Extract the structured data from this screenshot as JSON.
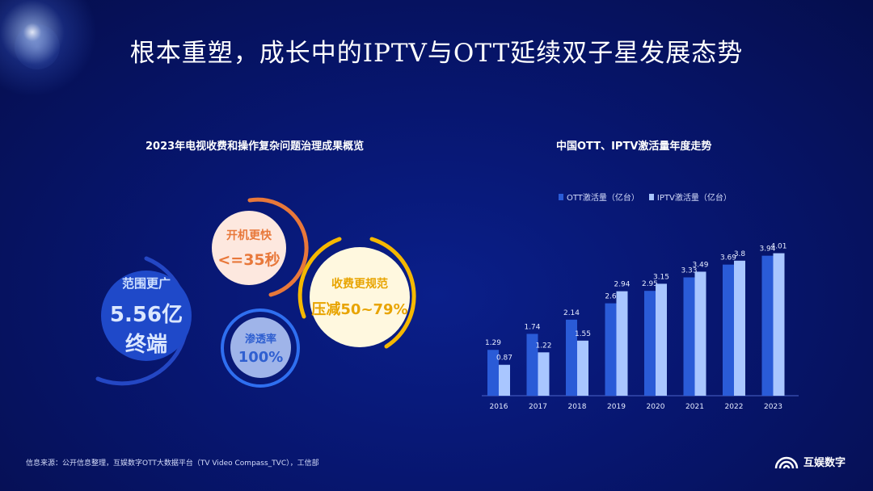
{
  "title": "根本重塑，成长中的IPTV与OTT延续双子星发展态势",
  "left_panel": {
    "subtitle": "2023年电视收费和操作复杂问题治理成果概览",
    "range": {
      "label": "范围更广",
      "value": "5.56亿终端"
    },
    "boot": {
      "label": "开机更快",
      "value": "<=35秒"
    },
    "penetration": {
      "label": "渗透率",
      "value": "100%"
    },
    "fee": {
      "label": "收费更规范",
      "value": "压减50~79%"
    }
  },
  "chart_data": {
    "type": "bar",
    "title": "中国OTT、IPTV激活量年度走势",
    "categories": [
      "2016",
      "2017",
      "2018",
      "2019",
      "2020",
      "2021",
      "2022",
      "2023"
    ],
    "series": [
      {
        "name": "OTT激活量（亿台）",
        "values": [
          1.29,
          1.74,
          2.14,
          2.6,
          2.95,
          3.33,
          3.69,
          3.94
        ],
        "color": "#2a5bd7"
      },
      {
        "name": "IPTV激活量（亿台）",
        "values": [
          0.87,
          1.22,
          1.55,
          2.94,
          3.15,
          3.49,
          3.8,
          4.01
        ],
        "color": "#a9c6ff"
      }
    ],
    "ylim": [
      0,
      4.5
    ],
    "legend": "top-left",
    "grid": false
  },
  "footer": {
    "source": "信息来源：公开信息整理，互娱数字OTT大数据平台（TV Video Compass_TVC），工信部",
    "logo_text": "互娱数字"
  },
  "colors": {
    "background": "#071670",
    "orange": "#e8783a",
    "gold": "#f5b800",
    "blue": "#2a5bd7"
  }
}
